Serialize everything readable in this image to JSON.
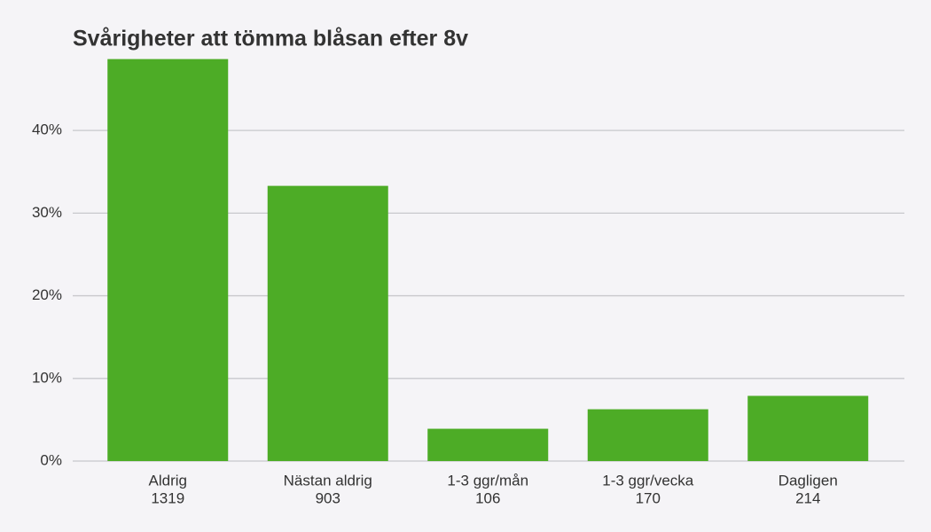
{
  "chart_data": {
    "type": "bar",
    "title": "Svårigheter att tömma blåsan efter 8v",
    "categories": [
      "Aldrig",
      "Nästan aldrig",
      "1-3 ggr/mån",
      "1-3 ggr/vecka",
      "Dagligen"
    ],
    "counts": [
      1319,
      903,
      106,
      170,
      214
    ],
    "values": [
      48.64,
      33.3,
      3.91,
      6.27,
      7.89
    ],
    "color": "#4dac26",
    "ylim": [
      0,
      48.6
    ],
    "yticks": [
      {
        "value": 0,
        "label": "0%"
      },
      {
        "value": 10,
        "label": "10%"
      },
      {
        "value": 20,
        "label": "20%"
      },
      {
        "value": 30,
        "label": "30%"
      },
      {
        "value": 40,
        "label": "40%"
      }
    ],
    "grid": true
  }
}
